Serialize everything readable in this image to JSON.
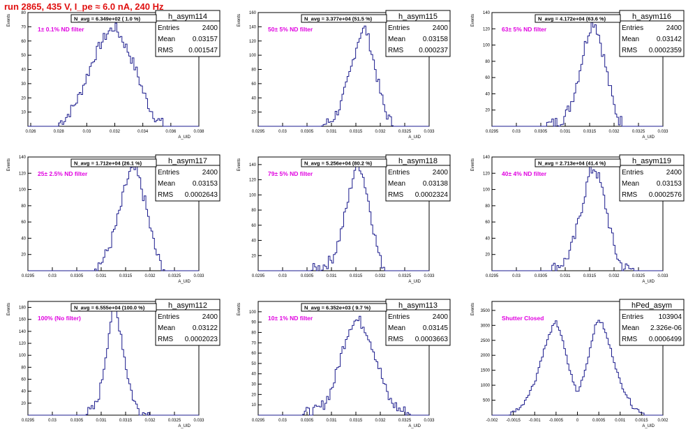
{
  "run_title": "run 2865,   435 V, I_pe ≈ 6.0 nA, 240 Hz",
  "colors": {
    "histogram": "#1a1a8c",
    "annotation": "#e000e0",
    "run_title": "#e01010"
  },
  "stats_labels": {
    "entries": "Entries",
    "mean": "Mean",
    "rms": "RMS"
  },
  "axis_labels": {
    "x": "A_UID",
    "y": "Events"
  },
  "chart_data": [
    {
      "type": "histogram",
      "name": "h_asym114",
      "entries": "2400",
      "mean": "0.03157",
      "rms": "0.001547",
      "navg": "N_avg = 6.349e+02 ( 1.0 %)",
      "filter": "1± 0.1% ND filter",
      "xlim": [
        0.0258,
        0.038
      ],
      "ylim": [
        0,
        80
      ],
      "xticks": [
        "0.026",
        "0.028",
        "0.03",
        "0.032",
        "0.034",
        "0.036",
        "0.038"
      ],
      "yticks": [
        "10",
        "20",
        "30",
        "40",
        "50",
        "60",
        "70",
        "80"
      ],
      "x": [
        0.028,
        0.0285,
        0.029,
        0.0295,
        0.03,
        0.0305,
        0.031,
        0.0315,
        0.032,
        0.0325,
        0.033,
        0.0335,
        0.034,
        0.0345,
        0.035,
        0.0355
      ],
      "y": [
        2,
        6,
        13,
        22,
        35,
        48,
        58,
        66,
        70,
        62,
        52,
        40,
        25,
        13,
        5,
        1
      ],
      "noise": 4
    },
    {
      "type": "histogram",
      "name": "h_asym115",
      "entries": "2400",
      "mean": "0.03158",
      "rms": "0.000237",
      "navg": "N_avg = 3.377e+04 (51.5 %)",
      "filter": "50± 5% ND filter",
      "xlim": [
        0.0295,
        0.033
      ],
      "ylim": [
        0,
        160
      ],
      "xticks": [
        "0.0295",
        "0.03",
        "0.0305",
        "0.031",
        "0.0315",
        "0.032",
        "0.0325",
        "0.033"
      ],
      "yticks": [
        "20",
        "40",
        "60",
        "80",
        "100",
        "120",
        "140",
        "160"
      ],
      "x": [
        0.0308,
        0.031,
        0.0311,
        0.0312,
        0.0313,
        0.0314,
        0.0315,
        0.0316,
        0.0317,
        0.0318,
        0.0319,
        0.032,
        0.0321,
        0.0322,
        0.0323
      ],
      "y": [
        1,
        8,
        18,
        32,
        55,
        80,
        110,
        132,
        138,
        112,
        80,
        48,
        22,
        8,
        1
      ],
      "noise": 8
    },
    {
      "type": "histogram",
      "name": "h_asym116",
      "entries": "2400",
      "mean": "0.03142",
      "rms": "0.0002359",
      "navg": "N_avg = 4.172e+04 (63.6 %)",
      "filter": "63± 5% ND filter",
      "xlim": [
        0.0295,
        0.033
      ],
      "ylim": [
        0,
        140
      ],
      "xticks": [
        "0.0295",
        "0.03",
        "0.0305",
        "0.031",
        "0.0315",
        "0.032",
        "0.0325",
        "0.033"
      ],
      "yticks": [
        "20",
        "40",
        "60",
        "80",
        "100",
        "120",
        "140"
      ],
      "x": [
        0.0306,
        0.0308,
        0.031,
        0.0311,
        0.0312,
        0.0313,
        0.0314,
        0.0315,
        0.0316,
        0.0317,
        0.0318,
        0.0319,
        0.032,
        0.0321,
        0.0322
      ],
      "y": [
        1,
        4,
        12,
        25,
        45,
        70,
        98,
        122,
        130,
        110,
        82,
        52,
        25,
        9,
        2
      ],
      "noise": 8
    },
    {
      "type": "histogram",
      "name": "h_asym117",
      "entries": "2400",
      "mean": "0.03153",
      "rms": "0.0002643",
      "navg": "N_avg = 1.712e+04 (26.1 %)",
      "filter": "25± 2.5% ND filter",
      "xlim": [
        0.0295,
        0.033
      ],
      "ylim": [
        0,
        140
      ],
      "xticks": [
        "0.0295",
        "0.03",
        "0.0305",
        "0.031",
        "0.0315",
        "0.032",
        "0.0325",
        "0.033"
      ],
      "yticks": [
        "20",
        "40",
        "60",
        "80",
        "100",
        "120",
        "140"
      ],
      "x": [
        0.0308,
        0.031,
        0.0311,
        0.0312,
        0.0313,
        0.0314,
        0.0315,
        0.0316,
        0.0317,
        0.0318,
        0.0319,
        0.032,
        0.0321,
        0.0322,
        0.0323
      ],
      "y": [
        2,
        10,
        20,
        35,
        55,
        78,
        105,
        122,
        124,
        108,
        84,
        55,
        28,
        10,
        2
      ],
      "noise": 8
    },
    {
      "type": "histogram",
      "name": "h_asym118",
      "entries": "2400",
      "mean": "0.03138",
      "rms": "0.0002324",
      "navg": "N_avg = 5.256e+04 (80.2 %)",
      "filter": "79± 5% ND filter",
      "xlim": [
        0.0295,
        0.033
      ],
      "ylim": [
        0,
        150
      ],
      "xticks": [
        "0.0295",
        "0.03",
        "0.0305",
        "0.031",
        "0.0315",
        "0.032",
        "0.0325",
        "0.033"
      ],
      "yticks": [
        "20",
        "40",
        "60",
        "80",
        "100",
        "120",
        "140"
      ],
      "x": [
        0.0306,
        0.0308,
        0.031,
        0.0311,
        0.0312,
        0.0313,
        0.0314,
        0.0315,
        0.0316,
        0.0317,
        0.0318,
        0.0319,
        0.032,
        0.0321
      ],
      "y": [
        1,
        5,
        14,
        30,
        52,
        80,
        112,
        140,
        138,
        110,
        78,
        42,
        14,
        3
      ],
      "noise": 8
    },
    {
      "type": "histogram",
      "name": "h_asym119",
      "entries": "2400",
      "mean": "0.03153",
      "rms": "0.0002576",
      "navg": "N_avg = 2.713e+04 (41.4 %)",
      "filter": "40± 4% ND filter",
      "xlim": [
        0.0295,
        0.033
      ],
      "ylim": [
        0,
        140
      ],
      "xticks": [
        "0.0295",
        "0.03",
        "0.0305",
        "0.031",
        "0.0315",
        "0.032",
        "0.0325",
        "0.033"
      ],
      "yticks": [
        "20",
        "40",
        "60",
        "80",
        "100",
        "120",
        "140"
      ],
      "x": [
        0.0306,
        0.0308,
        0.031,
        0.0311,
        0.0312,
        0.0313,
        0.0314,
        0.0315,
        0.0316,
        0.0317,
        0.0318,
        0.0319,
        0.032,
        0.0321,
        0.0322,
        0.0324
      ],
      "y": [
        1,
        4,
        12,
        24,
        42,
        68,
        95,
        120,
        128,
        112,
        88,
        58,
        30,
        12,
        4,
        1
      ],
      "noise": 8
    },
    {
      "type": "histogram",
      "name": "h_asym112",
      "entries": "2400",
      "mean": "0.03122",
      "rms": "0.0002023",
      "navg": "N_avg = 6.555e+04 (100.0 %)",
      "filter": "100% (No filter)",
      "xlim": [
        0.0295,
        0.033
      ],
      "ylim": [
        0,
        190
      ],
      "xticks": [
        "0.0295",
        "0.03",
        "0.0305",
        "0.031",
        "0.0315",
        "0.032",
        "0.0325",
        "0.033"
      ],
      "yticks": [
        "20",
        "40",
        "60",
        "80",
        "100",
        "120",
        "140",
        "160",
        "180"
      ],
      "x": [
        0.0306,
        0.0308,
        0.0309,
        0.031,
        0.0311,
        0.0312,
        0.0313,
        0.0314,
        0.0315,
        0.0316,
        0.0317,
        0.0318,
        0.032
      ],
      "y": [
        1,
        6,
        18,
        50,
        105,
        160,
        175,
        140,
        85,
        45,
        18,
        6,
        1
      ],
      "noise": 10
    },
    {
      "type": "histogram",
      "name": "h_asym113",
      "entries": "2400",
      "mean": "0.03145",
      "rms": "0.0003663",
      "navg": "N_avg = 6.352e+03 ( 9.7 %)",
      "filter": "10± 1% ND filter",
      "xlim": [
        0.0295,
        0.033
      ],
      "ylim": [
        0,
        110
      ],
      "xticks": [
        "0.0295",
        "0.03",
        "0.0305",
        "0.031",
        "0.0315",
        "0.032",
        "0.0325",
        "0.033"
      ],
      "yticks": [
        "10",
        "20",
        "30",
        "40",
        "50",
        "60",
        "70",
        "80",
        "90",
        "100"
      ],
      "x": [
        0.0303,
        0.0305,
        0.0307,
        0.0308,
        0.0309,
        0.031,
        0.0311,
        0.0312,
        0.0313,
        0.0314,
        0.0315,
        0.0316,
        0.0317,
        0.0318,
        0.0319,
        0.032,
        0.0321,
        0.0322,
        0.0324,
        0.0326
      ],
      "y": [
        1,
        2,
        4,
        8,
        15,
        25,
        40,
        58,
        76,
        88,
        92,
        90,
        84,
        72,
        58,
        42,
        26,
        14,
        5,
        2
      ],
      "noise": 6
    },
    {
      "type": "histogram",
      "name": "hPed_asym",
      "entries": "103904",
      "mean": "2.326e-06",
      "rms": "0.0006499",
      "navg": "",
      "filter": "Shutter Closed",
      "xlim": [
        -0.002,
        0.002
      ],
      "ylim": [
        0,
        3800
      ],
      "xticks": [
        "-0.002",
        "-0.0015",
        "-0.001",
        "-0.0005",
        "0",
        "0.0005",
        "0.001",
        "0.0015",
        "0.002"
      ],
      "yticks": [
        "500",
        "1000",
        "1500",
        "2000",
        "2500",
        "3000",
        "3500"
      ],
      "x": [
        -0.0016,
        -0.0013,
        -0.001,
        -0.0008,
        -0.0006,
        -0.0005,
        -0.0004,
        -0.0002,
        0,
        0.0002,
        0.0004,
        0.0005,
        0.0006,
        0.0008,
        0.001,
        0.0013,
        0.0016
      ],
      "y": [
        20,
        300,
        1100,
        2100,
        2900,
        3100,
        2800,
        1600,
        700,
        1600,
        2900,
        3200,
        3000,
        2100,
        1100,
        280,
        20
      ],
      "noise": 60
    }
  ]
}
